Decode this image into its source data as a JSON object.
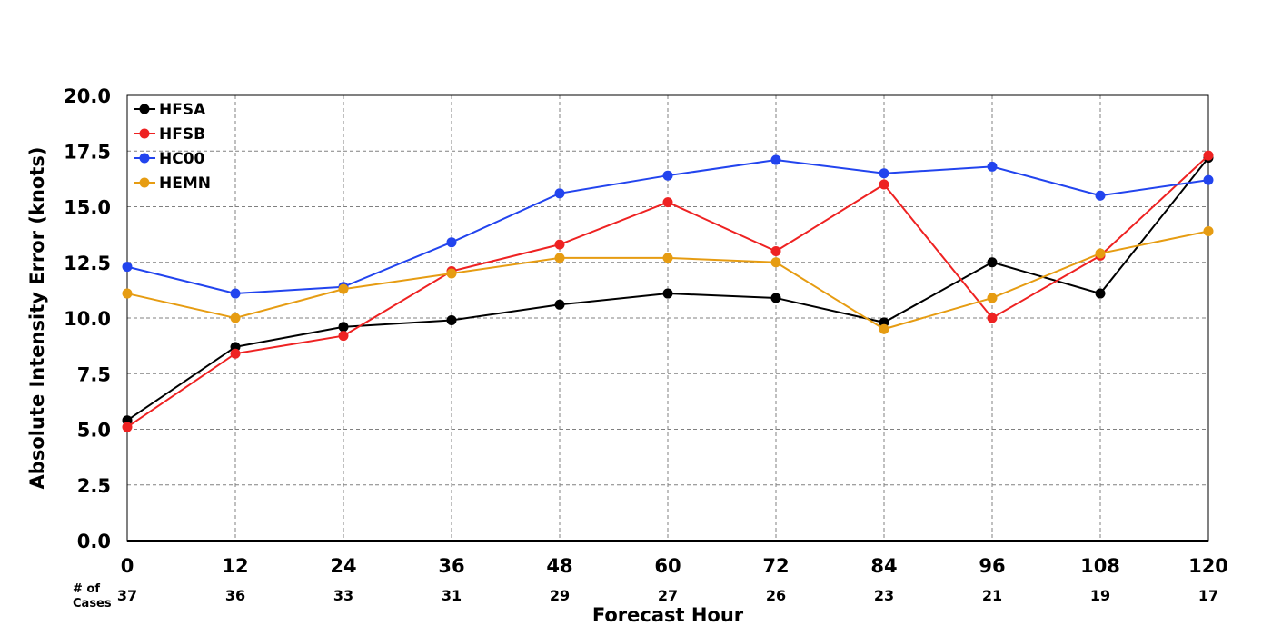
{
  "chart_data": {
    "type": "line",
    "title": "",
    "xlabel": "Forecast Hour",
    "ylabel": "Absolute Intensity Error (knots)",
    "x": [
      0,
      12,
      24,
      36,
      48,
      60,
      72,
      84,
      96,
      108,
      120
    ],
    "xlim": [
      0,
      120
    ],
    "ylim": [
      0,
      20
    ],
    "y_ticks": [
      "0.0",
      "2.5",
      "5.0",
      "7.5",
      "10.0",
      "12.5",
      "15.0",
      "17.5",
      "20.0"
    ],
    "x_ticks": [
      "0",
      "12",
      "24",
      "36",
      "48",
      "60",
      "72",
      "84",
      "96",
      "108",
      "120"
    ],
    "grid": true,
    "legend_position": "top-left",
    "cases_label_line1": "# of",
    "cases_label_line2": "Cases",
    "cases": [
      "37",
      "36",
      "33",
      "31",
      "29",
      "27",
      "26",
      "23",
      "21",
      "19",
      "17"
    ],
    "series": [
      {
        "name": "HFSA",
        "color": "#000000",
        "values": [
          5.4,
          8.7,
          9.6,
          9.9,
          10.6,
          11.1,
          10.9,
          9.8,
          12.5,
          11.1,
          17.2
        ]
      },
      {
        "name": "HFSB",
        "color": "#ee2222",
        "values": [
          5.1,
          8.4,
          9.2,
          12.1,
          13.3,
          15.2,
          13.0,
          16.0,
          10.0,
          12.8,
          17.3
        ]
      },
      {
        "name": "HC00",
        "color": "#2244ee",
        "values": [
          12.3,
          11.1,
          11.4,
          13.4,
          15.6,
          16.4,
          17.1,
          16.5,
          16.8,
          15.5,
          16.2
        ]
      },
      {
        "name": "HEMN",
        "color": "#e69c12",
        "values": [
          11.1,
          10.0,
          11.3,
          12.0,
          12.7,
          12.7,
          12.5,
          9.5,
          10.9,
          12.9,
          13.9
        ]
      }
    ]
  }
}
